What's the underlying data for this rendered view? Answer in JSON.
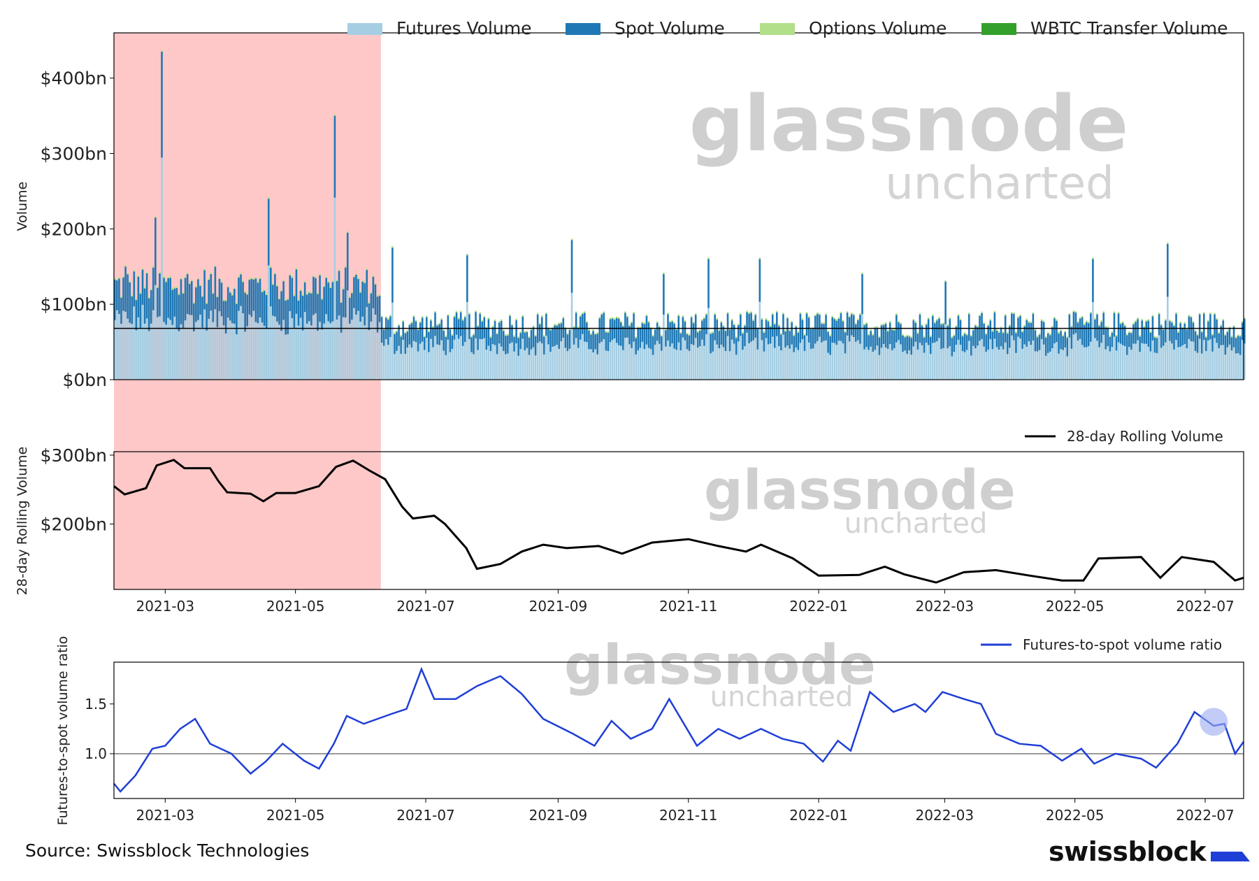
{
  "chart_data": [
    {
      "type": "bar",
      "ylabel": "Volume",
      "yticks": [
        "$0bn",
        "$100bn",
        "$200bn",
        "$300bn",
        "$400bn"
      ],
      "ylim": [
        0,
        460
      ],
      "reference_line": 68,
      "x_range": [
        "2021-02-05",
        "2022-07-19"
      ],
      "shaded_period": [
        "2021-02-05",
        "2021-06-10"
      ],
      "legend": [
        "Futures Volume",
        "Spot Volume",
        "Options Volume",
        "WBTC Transfer Volume"
      ],
      "colors": {
        "futures": "#a6cee3",
        "spot": "#1f78b4",
        "options": "#b2df8a",
        "wbtc": "#33a02c",
        "shade": "#ffb0b0"
      },
      "watermark": [
        "glassnode",
        "uncharted"
      ],
      "sampled_total_volume": [
        {
          "x": "2021-02-10",
          "y": 150
        },
        {
          "x": "2021-02-24",
          "y": 215
        },
        {
          "x": "2021-02-27",
          "y": 435
        },
        {
          "x": "2021-03-10",
          "y": 135
        },
        {
          "x": "2021-04-18",
          "y": 240
        },
        {
          "x": "2021-05-19",
          "y": 350
        },
        {
          "x": "2021-05-25",
          "y": 195
        },
        {
          "x": "2021-06-15",
          "y": 175
        },
        {
          "x": "2021-07-20",
          "y": 165
        },
        {
          "x": "2021-09-07",
          "y": 185
        },
        {
          "x": "2021-10-20",
          "y": 140
        },
        {
          "x": "2021-11-10",
          "y": 160
        },
        {
          "x": "2021-12-04",
          "y": 160
        },
        {
          "x": "2022-01-21",
          "y": 140
        },
        {
          "x": "2022-03-01",
          "y": 130
        },
        {
          "x": "2022-05-09",
          "y": 160
        },
        {
          "x": "2022-06-13",
          "y": 180
        }
      ]
    },
    {
      "type": "line",
      "ylabel": "28-day Rolling Volume",
      "yticks": [
        "$200bn",
        "$300bn"
      ],
      "ylim": [
        105,
        305
      ],
      "series": [
        {
          "name": "28-day Rolling Volume",
          "color": "#000000",
          "points": [
            {
              "x": "2021-02-05",
              "y": 255
            },
            {
              "x": "2021-02-10",
              "y": 243
            },
            {
              "x": "2021-02-20",
              "y": 252
            },
            {
              "x": "2021-02-25",
              "y": 285
            },
            {
              "x": "2021-03-05",
              "y": 293
            },
            {
              "x": "2021-03-10",
              "y": 281
            },
            {
              "x": "2021-03-22",
              "y": 281
            },
            {
              "x": "2021-03-26",
              "y": 262
            },
            {
              "x": "2021-03-30",
              "y": 246
            },
            {
              "x": "2021-04-10",
              "y": 244
            },
            {
              "x": "2021-04-16",
              "y": 233
            },
            {
              "x": "2021-04-22",
              "y": 245
            },
            {
              "x": "2021-05-01",
              "y": 245
            },
            {
              "x": "2021-05-12",
              "y": 255
            },
            {
              "x": "2021-05-20",
              "y": 283
            },
            {
              "x": "2021-05-28",
              "y": 292
            },
            {
              "x": "2021-06-05",
              "y": 277
            },
            {
              "x": "2021-06-12",
              "y": 265
            },
            {
              "x": "2021-06-20",
              "y": 225
            },
            {
              "x": "2021-06-25",
              "y": 208
            },
            {
              "x": "2021-07-05",
              "y": 212
            },
            {
              "x": "2021-07-10",
              "y": 200
            },
            {
              "x": "2021-07-20",
              "y": 165
            },
            {
              "x": "2021-07-25",
              "y": 135
            },
            {
              "x": "2021-08-05",
              "y": 142
            },
            {
              "x": "2021-08-15",
              "y": 160
            },
            {
              "x": "2021-08-25",
              "y": 170
            },
            {
              "x": "2021-09-05",
              "y": 165
            },
            {
              "x": "2021-09-20",
              "y": 168
            },
            {
              "x": "2021-10-01",
              "y": 157
            },
            {
              "x": "2021-10-15",
              "y": 173
            },
            {
              "x": "2021-11-01",
              "y": 178
            },
            {
              "x": "2021-11-15",
              "y": 168
            },
            {
              "x": "2021-11-28",
              "y": 160
            },
            {
              "x": "2021-12-05",
              "y": 170
            },
            {
              "x": "2021-12-20",
              "y": 150
            },
            {
              "x": "2022-01-01",
              "y": 125
            },
            {
              "x": "2022-01-20",
              "y": 126
            },
            {
              "x": "2022-02-01",
              "y": 138
            },
            {
              "x": "2022-02-10",
              "y": 127
            },
            {
              "x": "2022-02-25",
              "y": 115
            },
            {
              "x": "2022-03-10",
              "y": 130
            },
            {
              "x": "2022-03-25",
              "y": 133
            },
            {
              "x": "2022-04-10",
              "y": 125
            },
            {
              "x": "2022-04-25",
              "y": 118
            },
            {
              "x": "2022-05-05",
              "y": 118
            },
            {
              "x": "2022-05-12",
              "y": 150
            },
            {
              "x": "2022-06-01",
              "y": 152
            },
            {
              "x": "2022-06-10",
              "y": 122
            },
            {
              "x": "2022-06-20",
              "y": 152
            },
            {
              "x": "2022-07-05",
              "y": 145
            },
            {
              "x": "2022-07-15",
              "y": 118
            },
            {
              "x": "2022-07-19",
              "y": 122
            }
          ]
        }
      ],
      "watermark": [
        "glassnode",
        "uncharted"
      ]
    },
    {
      "type": "line",
      "ylabel": "Futures-to-spot volume ratio",
      "yticks": [
        "1.0",
        "1.5"
      ],
      "ylim": [
        0.55,
        1.92
      ],
      "reference_line": 1.0,
      "series": [
        {
          "name": "Futures-to-spot volume ratio",
          "color": "#1f3fd6",
          "points": [
            {
              "x": "2021-02-05",
              "y": 0.7
            },
            {
              "x": "2021-02-08",
              "y": 0.62
            },
            {
              "x": "2021-02-15",
              "y": 0.78
            },
            {
              "x": "2021-02-23",
              "y": 1.05
            },
            {
              "x": "2021-03-01",
              "y": 1.08
            },
            {
              "x": "2021-03-08",
              "y": 1.25
            },
            {
              "x": "2021-03-15",
              "y": 1.35
            },
            {
              "x": "2021-03-22",
              "y": 1.1
            },
            {
              "x": "2021-04-01",
              "y": 1.0
            },
            {
              "x": "2021-04-10",
              "y": 0.8
            },
            {
              "x": "2021-04-17",
              "y": 0.92
            },
            {
              "x": "2021-04-25",
              "y": 1.1
            },
            {
              "x": "2021-05-05",
              "y": 0.93
            },
            {
              "x": "2021-05-12",
              "y": 0.85
            },
            {
              "x": "2021-05-19",
              "y": 1.1
            },
            {
              "x": "2021-05-25",
              "y": 1.38
            },
            {
              "x": "2021-06-02",
              "y": 1.3
            },
            {
              "x": "2021-06-15",
              "y": 1.4
            },
            {
              "x": "2021-06-22",
              "y": 1.45
            },
            {
              "x": "2021-06-29",
              "y": 1.85
            },
            {
              "x": "2021-07-05",
              "y": 1.55
            },
            {
              "x": "2021-07-15",
              "y": 1.55
            },
            {
              "x": "2021-07-25",
              "y": 1.68
            },
            {
              "x": "2021-08-05",
              "y": 1.78
            },
            {
              "x": "2021-08-15",
              "y": 1.6
            },
            {
              "x": "2021-08-25",
              "y": 1.35
            },
            {
              "x": "2021-09-08",
              "y": 1.2
            },
            {
              "x": "2021-09-18",
              "y": 1.08
            },
            {
              "x": "2021-09-26",
              "y": 1.33
            },
            {
              "x": "2021-10-05",
              "y": 1.15
            },
            {
              "x": "2021-10-15",
              "y": 1.25
            },
            {
              "x": "2021-10-23",
              "y": 1.55
            },
            {
              "x": "2021-11-05",
              "y": 1.08
            },
            {
              "x": "2021-11-15",
              "y": 1.25
            },
            {
              "x": "2021-11-25",
              "y": 1.15
            },
            {
              "x": "2021-12-05",
              "y": 1.25
            },
            {
              "x": "2021-12-15",
              "y": 1.15
            },
            {
              "x": "2021-12-25",
              "y": 1.1
            },
            {
              "x": "2022-01-03",
              "y": 0.92
            },
            {
              "x": "2022-01-10",
              "y": 1.13
            },
            {
              "x": "2022-01-16",
              "y": 1.03
            },
            {
              "x": "2022-01-25",
              "y": 1.62
            },
            {
              "x": "2022-02-05",
              "y": 1.42
            },
            {
              "x": "2022-02-15",
              "y": 1.5
            },
            {
              "x": "2022-02-20",
              "y": 1.42
            },
            {
              "x": "2022-02-28",
              "y": 1.62
            },
            {
              "x": "2022-03-10",
              "y": 1.55
            },
            {
              "x": "2022-03-18",
              "y": 1.5
            },
            {
              "x": "2022-03-25",
              "y": 1.2
            },
            {
              "x": "2022-04-05",
              "y": 1.1
            },
            {
              "x": "2022-04-15",
              "y": 1.08
            },
            {
              "x": "2022-04-25",
              "y": 0.93
            },
            {
              "x": "2022-05-04",
              "y": 1.05
            },
            {
              "x": "2022-05-10",
              "y": 0.9
            },
            {
              "x": "2022-05-20",
              "y": 1.0
            },
            {
              "x": "2022-06-01",
              "y": 0.95
            },
            {
              "x": "2022-06-08",
              "y": 0.86
            },
            {
              "x": "2022-06-18",
              "y": 1.1
            },
            {
              "x": "2022-06-26",
              "y": 1.42
            },
            {
              "x": "2022-07-05",
              "y": 1.28
            },
            {
              "x": "2022-07-10",
              "y": 1.3
            },
            {
              "x": "2022-07-15",
              "y": 1.0
            },
            {
              "x": "2022-07-19",
              "y": 1.12
            }
          ]
        }
      ],
      "watermark": [
        "glassnode",
        "uncharted"
      ]
    }
  ],
  "x_axis": {
    "ticks": [
      "2021-03",
      "2021-05",
      "2021-07",
      "2021-09",
      "2021-11",
      "2022-01",
      "2022-03",
      "2022-05",
      "2022-07"
    ]
  },
  "footer": {
    "source": "Source: Swissblock Technologies",
    "brand": "swissblock"
  }
}
